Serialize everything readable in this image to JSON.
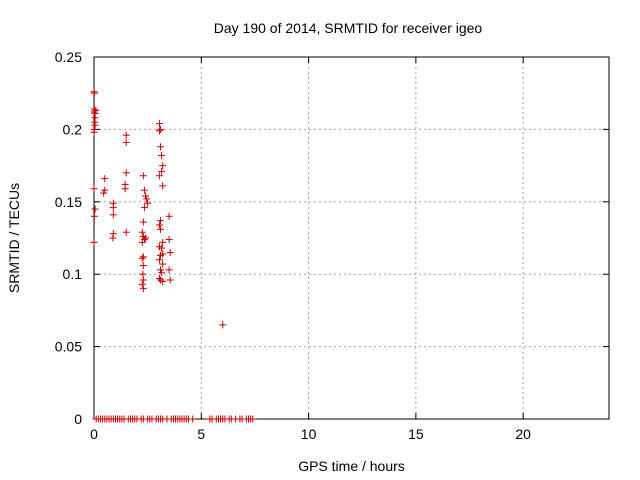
{
  "chart_data": {
    "type": "scatter",
    "title": "Day 190 of 2014, SRMTID for receiver igeo",
    "xlabel": "GPS time / hours",
    "ylabel": "SRMTID / TECUs",
    "xlim": [
      0,
      24
    ],
    "ylim": [
      0,
      0.25
    ],
    "xticks": [
      0,
      5,
      10,
      15,
      20
    ],
    "xtick_labels": [
      "0",
      "5",
      "10",
      "15",
      "20"
    ],
    "yticks": [
      0,
      0.05,
      0.1,
      0.15,
      0.2,
      0.25
    ],
    "ytick_labels": [
      "0",
      "0.05",
      "0.1",
      "0.15",
      "0.2",
      "0.25"
    ],
    "grid": true,
    "marker": "+",
    "color": "#cc0000",
    "series": [
      {
        "points": [
          [
            0.0,
            0.226
          ],
          [
            0.02,
            0.225
          ],
          [
            0.0,
            0.212
          ],
          [
            0.05,
            0.211
          ],
          [
            0.02,
            0.214
          ],
          [
            0.08,
            0.213
          ],
          [
            0.05,
            0.208
          ],
          [
            0.03,
            0.205
          ],
          [
            0.05,
            0.203
          ],
          [
            0.02,
            0.2
          ],
          [
            0.0,
            0.198
          ],
          [
            0.0,
            0.159
          ],
          [
            0.05,
            0.145
          ],
          [
            0.02,
            0.14
          ],
          [
            0.0,
            0.122
          ],
          [
            0.5,
            0.166
          ],
          [
            0.5,
            0.158
          ],
          [
            0.45,
            0.156
          ],
          [
            0.9,
            0.149
          ],
          [
            0.9,
            0.146
          ],
          [
            0.9,
            0.141
          ],
          [
            0.9,
            0.128
          ],
          [
            0.88,
            0.125
          ],
          [
            1.5,
            0.196
          ],
          [
            1.5,
            0.191
          ],
          [
            1.5,
            0.17
          ],
          [
            1.45,
            0.162
          ],
          [
            1.45,
            0.159
          ],
          [
            1.5,
            0.129
          ],
          [
            2.3,
            0.168
          ],
          [
            2.35,
            0.158
          ],
          [
            2.4,
            0.154
          ],
          [
            2.45,
            0.152
          ],
          [
            2.5,
            0.149
          ],
          [
            2.35,
            0.146
          ],
          [
            2.3,
            0.136
          ],
          [
            2.25,
            0.129
          ],
          [
            2.3,
            0.126
          ],
          [
            2.35,
            0.124
          ],
          [
            2.25,
            0.122
          ],
          [
            2.4,
            0.125
          ],
          [
            2.3,
            0.112
          ],
          [
            2.25,
            0.111
          ],
          [
            2.3,
            0.106
          ],
          [
            2.28,
            0.1
          ],
          [
            2.3,
            0.096
          ],
          [
            2.25,
            0.093
          ],
          [
            2.3,
            0.09
          ],
          [
            3.05,
            0.204
          ],
          [
            3.1,
            0.2
          ],
          [
            3.05,
            0.199
          ],
          [
            3.1,
            0.188
          ],
          [
            3.15,
            0.182
          ],
          [
            3.2,
            0.175
          ],
          [
            3.15,
            0.171
          ],
          [
            3.05,
            0.168
          ],
          [
            3.2,
            0.161
          ],
          [
            3.1,
            0.137
          ],
          [
            3.05,
            0.134
          ],
          [
            3.1,
            0.131
          ],
          [
            3.2,
            0.122
          ],
          [
            3.05,
            0.119
          ],
          [
            3.15,
            0.118
          ],
          [
            3.2,
            0.114
          ],
          [
            3.1,
            0.113
          ],
          [
            3.05,
            0.11
          ],
          [
            3.2,
            0.107
          ],
          [
            3.1,
            0.103
          ],
          [
            3.15,
            0.101
          ],
          [
            3.05,
            0.097
          ],
          [
            3.2,
            0.095
          ],
          [
            3.1,
            0.096
          ],
          [
            3.5,
            0.14
          ],
          [
            3.5,
            0.124
          ],
          [
            3.55,
            0.115
          ],
          [
            3.5,
            0.103
          ],
          [
            3.55,
            0.096
          ],
          [
            6.0,
            0.065
          ],
          [
            0.1,
            0.0
          ],
          [
            0.2,
            0.0
          ],
          [
            0.3,
            0.0
          ],
          [
            0.4,
            0.0
          ],
          [
            0.5,
            0.0
          ],
          [
            0.6,
            0.0
          ],
          [
            0.7,
            0.0
          ],
          [
            0.8,
            0.0
          ],
          [
            0.9,
            0.0
          ],
          [
            1.0,
            0.0
          ],
          [
            1.1,
            0.0
          ],
          [
            1.2,
            0.0
          ],
          [
            1.3,
            0.0
          ],
          [
            1.4,
            0.0
          ],
          [
            1.6,
            0.0
          ],
          [
            1.7,
            0.0
          ],
          [
            1.8,
            0.0
          ],
          [
            1.9,
            0.0
          ],
          [
            2.0,
            0.0
          ],
          [
            2.2,
            0.0
          ],
          [
            2.3,
            0.0
          ],
          [
            2.5,
            0.0
          ],
          [
            2.6,
            0.0
          ],
          [
            2.7,
            0.0
          ],
          [
            2.9,
            0.0
          ],
          [
            3.0,
            0.0
          ],
          [
            3.1,
            0.0
          ],
          [
            3.2,
            0.0
          ],
          [
            3.4,
            0.0
          ],
          [
            3.6,
            0.0
          ],
          [
            3.7,
            0.0
          ],
          [
            3.8,
            0.0
          ],
          [
            3.9,
            0.0
          ],
          [
            4.0,
            0.0
          ],
          [
            4.1,
            0.0
          ],
          [
            4.2,
            0.0
          ],
          [
            4.3,
            0.0
          ],
          [
            4.4,
            0.0
          ],
          [
            4.6,
            0.0
          ],
          [
            5.4,
            0.0
          ],
          [
            5.5,
            0.0
          ],
          [
            5.7,
            0.0
          ],
          [
            5.8,
            0.0
          ],
          [
            5.9,
            0.0
          ],
          [
            6.0,
            0.0
          ],
          [
            6.1,
            0.0
          ],
          [
            6.3,
            0.0
          ],
          [
            6.4,
            0.0
          ],
          [
            6.6,
            0.0
          ],
          [
            6.8,
            0.0
          ],
          [
            6.9,
            0.0
          ],
          [
            7.1,
            0.0
          ],
          [
            7.2,
            0.0
          ],
          [
            7.3,
            0.0
          ],
          [
            7.4,
            0.0
          ]
        ]
      }
    ]
  }
}
